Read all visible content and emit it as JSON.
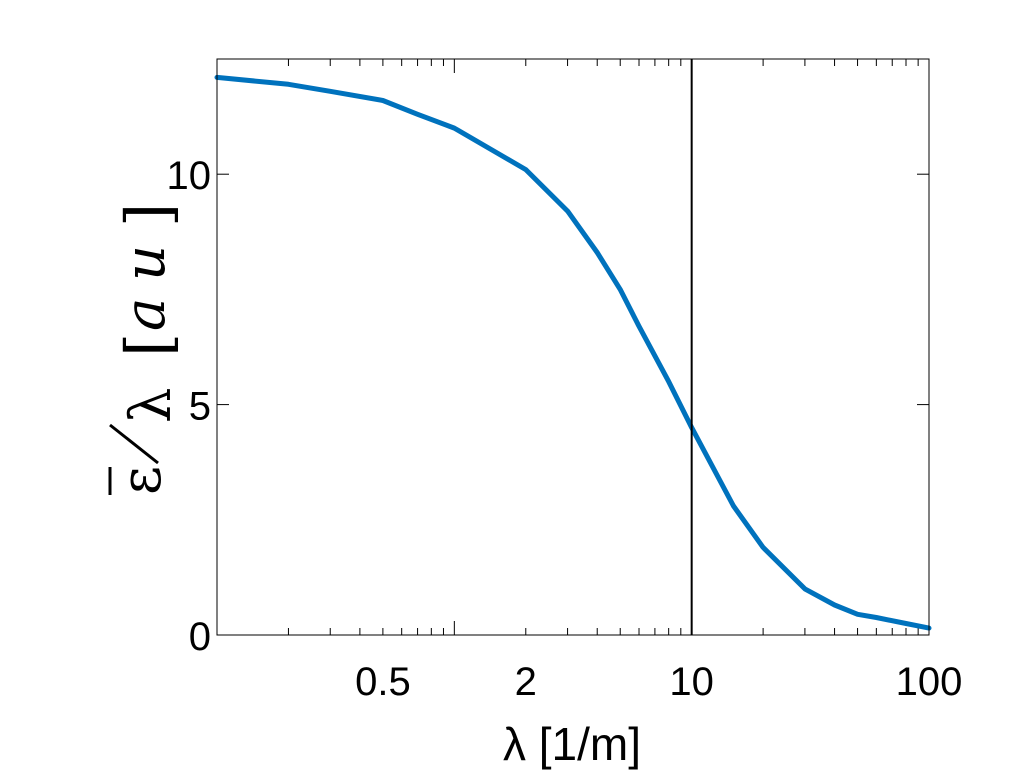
{
  "chart_data": {
    "type": "line",
    "x_scale": "log",
    "xlim": [
      0.1,
      100
    ],
    "ylim": [
      0,
      12.5
    ],
    "xticks": [
      0.5,
      2,
      10,
      100
    ],
    "xtick_labels": [
      "0.5",
      "2",
      "10",
      "100"
    ],
    "yticks": [
      0,
      5,
      10
    ],
    "ytick_labels": [
      "0",
      "5",
      "10"
    ],
    "xlabel": "λ [1/m]",
    "ylabel": "ε̄/λ [a u]",
    "grid": false,
    "vertical_line_x": 10,
    "series": [
      {
        "color": "#0072bd",
        "x": [
          0.1,
          0.2,
          0.3,
          0.5,
          0.7,
          1,
          2,
          3,
          4,
          5,
          6,
          8,
          10,
          15,
          20,
          30,
          40,
          50,
          60,
          80,
          100
        ],
        "y": [
          12.1,
          11.95,
          11.8,
          11.6,
          11.3,
          11.0,
          10.1,
          9.2,
          8.3,
          7.5,
          6.7,
          5.5,
          4.5,
          2.8,
          1.9,
          1.0,
          0.65,
          0.45,
          0.38,
          0.25,
          0.15
        ]
      }
    ]
  }
}
